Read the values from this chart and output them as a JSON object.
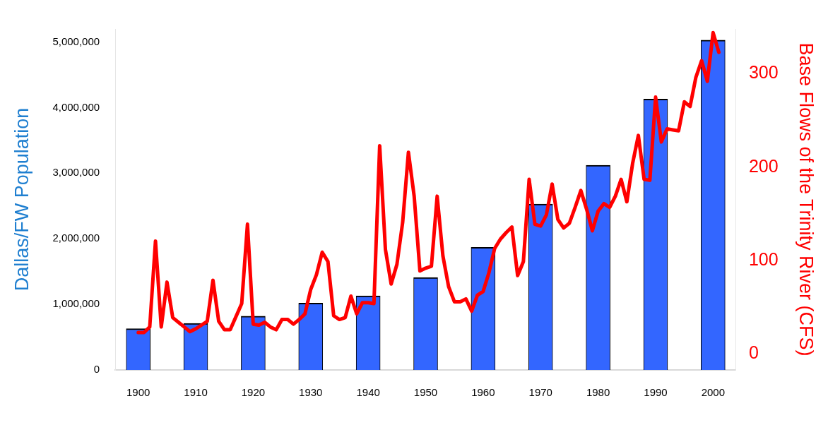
{
  "chart_data": {
    "type": "bar",
    "ylabel": "Dallas/FW Population",
    "y2label": "Base Flows of the Trinity River (CFS)",
    "xlim": [
      1896,
      2004
    ],
    "xticks": [
      1900,
      1910,
      1920,
      1930,
      1940,
      1950,
      1960,
      1970,
      1980,
      1990,
      2000
    ],
    "ylim": [
      0,
      5200000
    ],
    "yticks": [
      0,
      {
        "value": 1000000,
        "label": "1,000,000"
      },
      {
        "value": 2000000,
        "label": "2,000,000"
      },
      {
        "value": 3000000,
        "label": "3,000,000"
      },
      {
        "value": 4000000,
        "label": "4,000,000"
      },
      {
        "value": 5000000,
        "label": "5,000,000"
      }
    ],
    "y2lim": [
      -17,
      348
    ],
    "y2ticks": [
      0,
      100,
      200,
      300
    ],
    "grid": false,
    "legend": false,
    "series": [
      {
        "color": "#3366ff",
        "x": [
          1900,
          1910,
          1920,
          1930,
          1940,
          1950,
          1960,
          1970,
          1980,
          1990,
          2000
        ],
        "values": [
          630000,
          710000,
          820000,
          1020000,
          1130000,
          1410000,
          1870000,
          2530000,
          3120000,
          4130000,
          5030000
        ]
      },
      {
        "type": "line",
        "axis": "y2",
        "color": "#ff0000",
        "x": [
          1900,
          1901,
          1902,
          1903,
          1904,
          1905,
          1906,
          1907,
          1908,
          1909,
          1910,
          1911,
          1912,
          1913,
          1914,
          1915,
          1916,
          1917,
          1918,
          1919,
          1920,
          1921,
          1922,
          1923,
          1924,
          1925,
          1926,
          1927,
          1928,
          1929,
          1930,
          1931,
          1932,
          1933,
          1934,
          1935,
          1936,
          1937,
          1938,
          1939,
          1940,
          1941,
          1942,
          1943,
          1944,
          1945,
          1946,
          1947,
          1948,
          1949,
          1950,
          1951,
          1952,
          1953,
          1954,
          1955,
          1956,
          1957,
          1958,
          1959,
          1960,
          1961,
          1962,
          1963,
          1964,
          1965,
          1966,
          1967,
          1968,
          1969,
          1970,
          1971,
          1972,
          1973,
          1974,
          1975,
          1976,
          1977,
          1978,
          1979,
          1980,
          1981,
          1982,
          1983,
          1984,
          1985,
          1986,
          1987,
          1988,
          1989,
          1990,
          1991,
          1992,
          1993,
          1994,
          1995,
          1996,
          1997,
          1998,
          1999,
          2000,
          2001
        ],
        "values": [
          23,
          23,
          29,
          121,
          29,
          77,
          39,
          34,
          29,
          24,
          27,
          31,
          35,
          79,
          35,
          26,
          26,
          40,
          54,
          139,
          32,
          31,
          34,
          29,
          26,
          37,
          37,
          32,
          37,
          43,
          69,
          85,
          109,
          99,
          41,
          37,
          39,
          62,
          43,
          55,
          55,
          54,
          223,
          112,
          75,
          96,
          141,
          216,
          169,
          89,
          92,
          94,
          169,
          105,
          72,
          56,
          56,
          59,
          46,
          63,
          67,
          87,
          113,
          123,
          130,
          136,
          84,
          99,
          187,
          139,
          137,
          149,
          182,
          144,
          135,
          140,
          157,
          175,
          155,
          132,
          153,
          161,
          157,
          169,
          187,
          163,
          204,
          234,
          187,
          186,
          275,
          227,
          241,
          240,
          239,
          270,
          265,
          296,
          314,
          292,
          344,
          323
        ]
      }
    ]
  }
}
